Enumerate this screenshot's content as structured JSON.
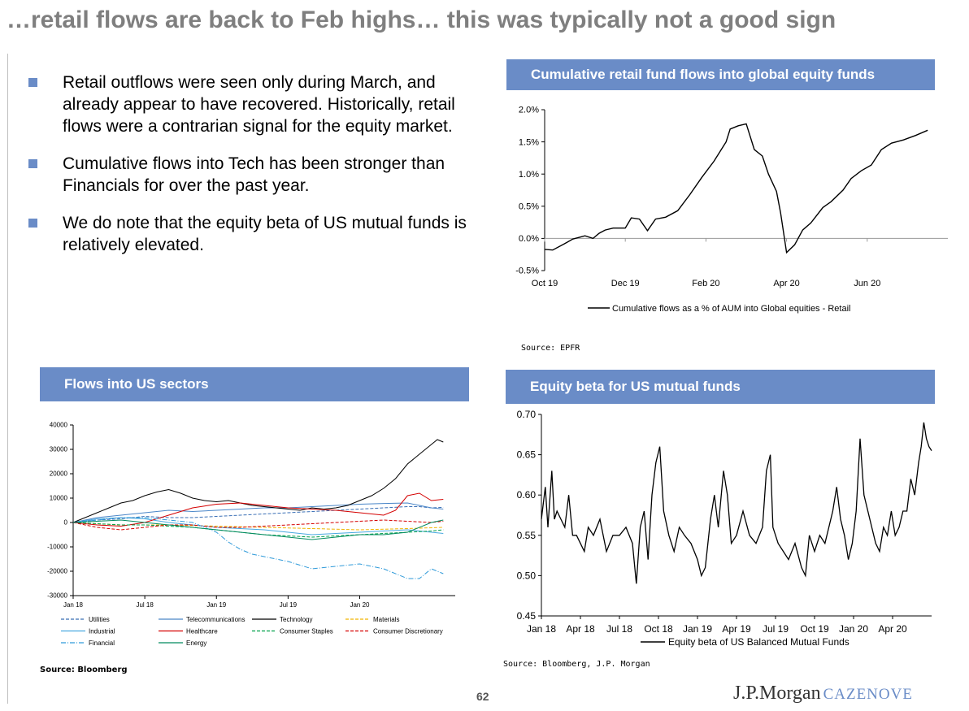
{
  "page": {
    "title": "…retail flows are back to Feb highs… this was typically not a good sign",
    "page_number": "62",
    "logo": {
      "main": "J.P.Morgan",
      "secondary": "CAZENOVE"
    }
  },
  "bullets": [
    "Retail outflows were seen only during March, and already appear to have recovered. Historically, retail flows were a contrarian signal for the equity market.",
    "Cumulative flows into Tech has been stronger than Financials for over the past year.",
    "We do note that the equity beta of US mutual funds is relatively elevated."
  ],
  "colors": {
    "header_bg": "#6a8cc7",
    "title": "#7f7f7f",
    "bullet": "#6a8cc7"
  },
  "panels": {
    "retail": {
      "header": "Cumulative retail fund flows into global equity funds",
      "source": "Source:  EPFR"
    },
    "sectors": {
      "header": "Flows into US sectors",
      "source": "Source: Bloomberg"
    },
    "beta": {
      "header": "Equity beta for US mutual funds",
      "source": "Source: Bloomberg, J.P. Morgan"
    }
  },
  "chart_data": [
    {
      "id": "retail",
      "type": "line",
      "title": "Cumulative retail fund flows into global equity funds",
      "ylim": [
        -0.5,
        2.0
      ],
      "yticks": [
        "2.0%",
        "1.5%",
        "1.0%",
        "0.5%",
        "0.0%",
        "-0.5%"
      ],
      "ytick_values": [
        2.0,
        1.5,
        1.0,
        0.5,
        0.0,
        -0.5
      ],
      "xlim": [
        0,
        10
      ],
      "xticks": [
        "Oct 19",
        "Dec 19",
        "Feb 20",
        "Apr 20",
        "Jun 20"
      ],
      "xtick_values": [
        0,
        2,
        4,
        6,
        8
      ],
      "series": [
        {
          "name": "Cumulative flows as a  % of AUM into Global equities - Retail",
          "color": "#000000",
          "x": [
            0,
            0.2,
            0.5,
            0.7,
            1.0,
            1.2,
            1.35,
            1.5,
            1.7,
            2.0,
            2.15,
            2.35,
            2.55,
            2.75,
            3.0,
            3.3,
            3.6,
            3.9,
            4.2,
            4.5,
            4.6,
            4.8,
            5.0,
            5.2,
            5.4,
            5.55,
            5.75,
            5.85,
            6.0,
            6.2,
            6.4,
            6.6,
            6.9,
            7.1,
            7.4,
            7.6,
            7.85,
            8.1,
            8.35,
            8.6,
            8.9,
            9.2,
            9.5
          ],
          "y": [
            -0.17,
            -0.18,
            -0.08,
            -0.01,
            0.04,
            0.0,
            0.08,
            0.13,
            0.16,
            0.16,
            0.32,
            0.3,
            0.12,
            0.3,
            0.33,
            0.43,
            0.68,
            0.95,
            1.2,
            1.5,
            1.7,
            1.75,
            1.78,
            1.38,
            1.28,
            1.0,
            0.73,
            0.4,
            -0.22,
            -0.1,
            0.13,
            0.24,
            0.48,
            0.57,
            0.75,
            0.93,
            1.05,
            1.14,
            1.38,
            1.48,
            1.53,
            1.6,
            1.68
          ]
        }
      ]
    },
    {
      "id": "sectors",
      "type": "line",
      "title": "Flows into US sectors",
      "ylim": [
        -30000,
        40000
      ],
      "yticks": [
        "40000",
        "30000",
        "20000",
        "10000",
        "0",
        "-10000",
        "-20000",
        "-30000"
      ],
      "ytick_values": [
        40000,
        30000,
        20000,
        10000,
        0,
        -10000,
        -20000,
        -30000
      ],
      "xlim": [
        0,
        32
      ],
      "xticks": [
        "Jan 18",
        "Jul 18",
        "Jan 19",
        "Jul 19",
        "Jan 20"
      ],
      "xtick_values": [
        0,
        6,
        12,
        18,
        24
      ],
      "series": [
        {
          "name": "Utilities",
          "color": "#3a6fb5",
          "dash": "4,2",
          "x": [
            0,
            2,
            4,
            6,
            8,
            10,
            12,
            14,
            16,
            18,
            20,
            22,
            24,
            26,
            28,
            29,
            30,
            31
          ],
          "y": [
            0,
            1000,
            1500,
            2500,
            2000,
            2000,
            2500,
            3000,
            3500,
            4000,
            4500,
            5000,
            5500,
            6000,
            6500,
            6500,
            6000,
            6200
          ]
        },
        {
          "name": "Telecommunications",
          "color": "#4a86c8",
          "x": [
            0,
            2,
            4,
            6,
            8,
            10,
            12,
            14,
            16,
            18,
            20,
            22,
            24,
            26,
            28,
            29,
            30,
            31
          ],
          "y": [
            0,
            2000,
            3000,
            4000,
            5000,
            4500,
            5000,
            5500,
            6000,
            6000,
            6500,
            7000,
            7500,
            7800,
            8000,
            7000,
            6000,
            5500
          ]
        },
        {
          "name": "Technology",
          "color": "#000000",
          "x": [
            0,
            1,
            2,
            3,
            4,
            5,
            6,
            7,
            8,
            9,
            10,
            11,
            12,
            13,
            14,
            15,
            16,
            17,
            18,
            19,
            20,
            21,
            22,
            23,
            24,
            25,
            26,
            27,
            28,
            29,
            30,
            30.5,
            31
          ],
          "y": [
            0,
            2000,
            4000,
            6000,
            8000,
            9000,
            11000,
            12500,
            13500,
            12000,
            10000,
            9000,
            8500,
            9000,
            8000,
            7000,
            6500,
            6000,
            5500,
            5000,
            6000,
            5500,
            6000,
            7000,
            9000,
            11000,
            14000,
            18000,
            24000,
            28000,
            32000,
            34000,
            33000
          ]
        },
        {
          "name": "Materials",
          "color": "#f0b400",
          "dash": "4,2",
          "x": [
            0,
            4,
            8,
            12,
            16,
            20,
            24,
            28,
            31
          ],
          "y": [
            0,
            -1000,
            -1000,
            -1500,
            -2000,
            -2500,
            -3000,
            -2500,
            -2000
          ]
        },
        {
          "name": "Industrial",
          "color": "#49a9e0",
          "x": [
            0,
            2,
            4,
            6,
            8,
            10,
            12,
            14,
            16,
            18,
            20,
            22,
            24,
            26,
            28,
            30,
            31
          ],
          "y": [
            0,
            1500,
            2000,
            1500,
            0,
            -1000,
            -2000,
            -2500,
            -3000,
            -4000,
            -5000,
            -4500,
            -4000,
            -3500,
            -3000,
            -4000,
            -4500
          ]
        },
        {
          "name": "Healthcare",
          "color": "#d40000",
          "x": [
            0,
            2,
            4,
            6,
            8,
            10,
            12,
            14,
            16,
            18,
            20,
            22,
            24,
            26,
            27,
            28,
            29,
            30,
            31
          ],
          "y": [
            0,
            -1000,
            -1500,
            0,
            3000,
            6000,
            7500,
            8000,
            7000,
            6000,
            5500,
            5000,
            4000,
            3000,
            5000,
            11000,
            12000,
            9000,
            9500
          ]
        },
        {
          "name": "Consumer Staples",
          "color": "#00a04a",
          "dash": "4,2",
          "x": [
            0,
            2,
            4,
            6,
            8,
            10,
            12,
            14,
            16,
            18,
            20,
            22,
            24,
            26,
            28,
            30,
            31
          ],
          "y": [
            0,
            -500,
            -1000,
            -1000,
            -1500,
            -2000,
            -3000,
            -4000,
            -5000,
            -5500,
            -6000,
            -5500,
            -5000,
            -4500,
            -4000,
            -3500,
            -3000
          ]
        },
        {
          "name": "Consumer Discretionary",
          "color": "#d40000",
          "dash": "4,2",
          "x": [
            0,
            2,
            4,
            6,
            8,
            10,
            12,
            14,
            16,
            18,
            20,
            22,
            24,
            26,
            28,
            30,
            31
          ],
          "y": [
            0,
            -2000,
            -3000,
            -2000,
            -1000,
            -1000,
            -2000,
            -2000,
            -1500,
            -1000,
            -500,
            0,
            500,
            1000,
            500,
            0,
            500
          ]
        },
        {
          "name": "Financial",
          "color": "#2f9ad9",
          "dash": "6,2,1,2",
          "x": [
            0,
            2,
            4,
            6,
            8,
            10,
            12,
            13,
            14,
            15,
            16,
            18,
            20,
            22,
            24,
            26,
            28,
            29,
            30,
            31
          ],
          "y": [
            0,
            1000,
            2000,
            2000,
            1000,
            0,
            -4000,
            -8000,
            -11000,
            -13000,
            -14000,
            -16000,
            -19000,
            -18000,
            -17000,
            -19000,
            -23000,
            -23000,
            -19000,
            -21000
          ]
        },
        {
          "name": "Energy",
          "color": "#008a5e",
          "x": [
            0,
            2,
            4,
            6,
            8,
            10,
            12,
            14,
            16,
            18,
            20,
            22,
            24,
            26,
            28,
            30,
            31
          ],
          "y": [
            0,
            500,
            1000,
            0,
            -1000,
            -2000,
            -3000,
            -4000,
            -5000,
            -6000,
            -7000,
            -6000,
            -5000,
            -5000,
            -4000,
            0,
            1000
          ]
        }
      ],
      "legend_placement": "bottom"
    },
    {
      "id": "beta",
      "type": "line",
      "title": "Equity beta for US mutual funds",
      "ylim": [
        0.45,
        0.7
      ],
      "yticks": [
        "0.70",
        "0.65",
        "0.60",
        "0.55",
        "0.50",
        "0.45"
      ],
      "ytick_values": [
        0.7,
        0.65,
        0.6,
        0.55,
        0.5,
        0.45
      ],
      "xlim": [
        0,
        30
      ],
      "xticks": [
        "Jan 18",
        "Apr 18",
        "Jul 18",
        "Oct 18",
        "Jan 19",
        "Apr 19",
        "Jul 19",
        "Oct 19",
        "Jan 20",
        "Apr 20"
      ],
      "xtick_values": [
        0,
        3,
        6,
        9,
        12,
        15,
        18,
        21,
        24,
        27
      ],
      "series": [
        {
          "name": "Equity beta of US Balanced Mutual Funds",
          "color": "#000000",
          "x": [
            0,
            0.3,
            0.5,
            0.8,
            1.0,
            1.2,
            1.5,
            1.8,
            2.1,
            2.4,
            2.7,
            3.0,
            3.3,
            3.6,
            4.0,
            4.5,
            5.0,
            5.5,
            6.0,
            6.5,
            7.0,
            7.3,
            7.6,
            7.9,
            8.2,
            8.5,
            8.8,
            9.1,
            9.4,
            9.8,
            10.2,
            10.6,
            11.0,
            11.5,
            12.0,
            12.3,
            12.6,
            13.0,
            13.3,
            13.6,
            14.0,
            14.3,
            14.6,
            15.0,
            15.5,
            16.0,
            16.5,
            17.0,
            17.3,
            17.6,
            17.8,
            18.2,
            18.6,
            19.0,
            19.5,
            20.0,
            20.3,
            20.6,
            21.0,
            21.4,
            21.8,
            22.1,
            22.4,
            22.7,
            23.0,
            23.3,
            23.6,
            23.9,
            24.2,
            24.5,
            24.8,
            25.1,
            25.4,
            25.7,
            26.0,
            26.3,
            26.6,
            26.9,
            27.2,
            27.5,
            27.8,
            28.1,
            28.4,
            28.7,
            29.0,
            29.2,
            29.4,
            29.6,
            29.8,
            30.0
          ],
          "y": [
            0.57,
            0.61,
            0.56,
            0.63,
            0.57,
            0.58,
            0.57,
            0.56,
            0.6,
            0.55,
            0.55,
            0.54,
            0.53,
            0.56,
            0.55,
            0.57,
            0.53,
            0.55,
            0.55,
            0.56,
            0.54,
            0.49,
            0.56,
            0.58,
            0.52,
            0.6,
            0.64,
            0.66,
            0.58,
            0.55,
            0.53,
            0.56,
            0.55,
            0.54,
            0.52,
            0.5,
            0.51,
            0.57,
            0.6,
            0.56,
            0.63,
            0.6,
            0.54,
            0.55,
            0.58,
            0.55,
            0.54,
            0.56,
            0.63,
            0.65,
            0.56,
            0.54,
            0.53,
            0.52,
            0.54,
            0.51,
            0.5,
            0.55,
            0.53,
            0.55,
            0.54,
            0.56,
            0.58,
            0.61,
            0.57,
            0.55,
            0.52,
            0.54,
            0.58,
            0.67,
            0.6,
            0.58,
            0.56,
            0.54,
            0.53,
            0.56,
            0.55,
            0.58,
            0.55,
            0.56,
            0.58,
            0.58,
            0.62,
            0.6,
            0.64,
            0.66,
            0.69,
            0.67,
            0.66,
            0.655
          ]
        }
      ],
      "legend_placement": "bottom"
    }
  ]
}
